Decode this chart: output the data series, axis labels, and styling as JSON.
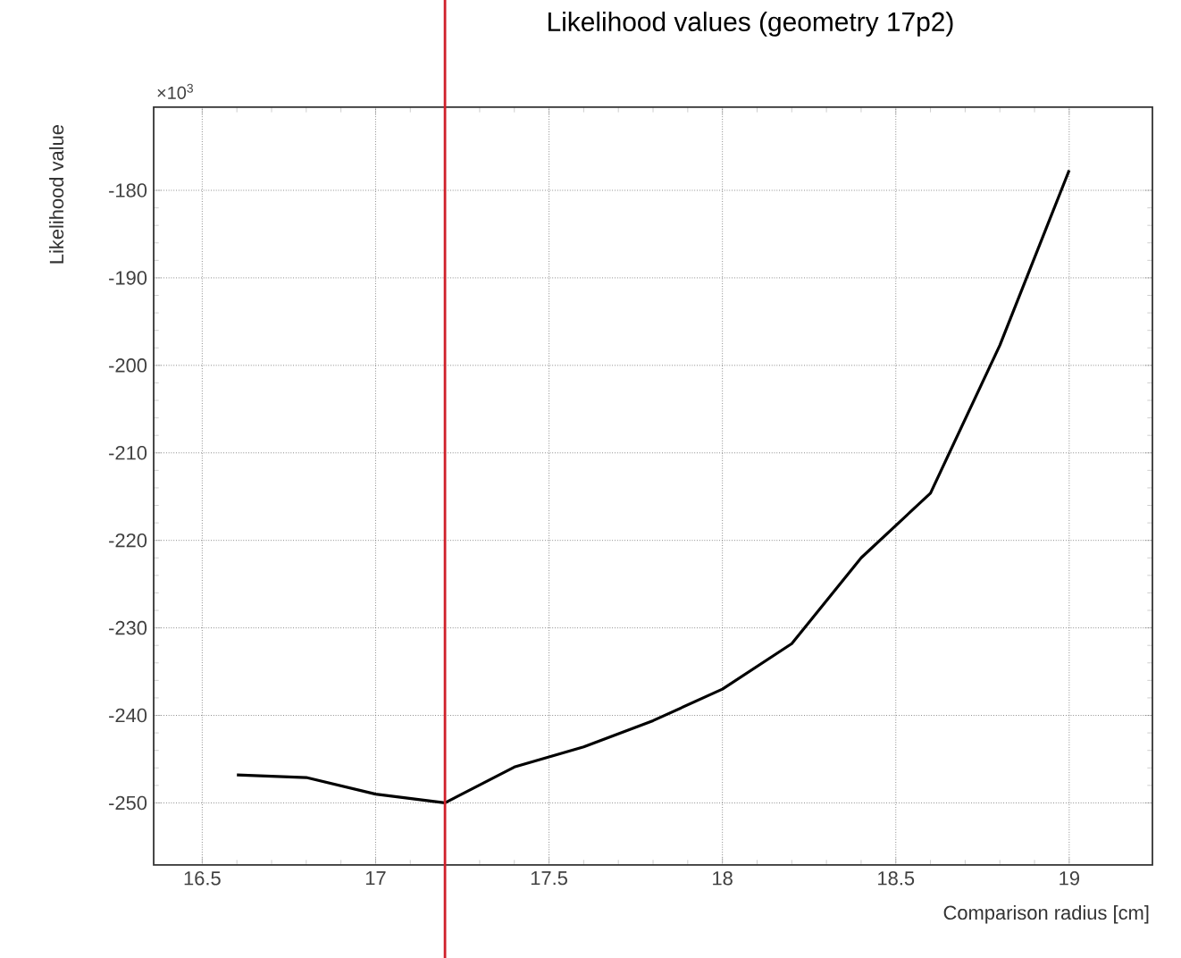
{
  "chart_data": {
    "type": "line",
    "title": "Likelihood values (geometry 17p2)",
    "xlabel": "Comparison radius [cm]",
    "ylabel": "Likelihood value",
    "annotations": [
      "×10$^{3}$"
    ],
    "x": [
      16.6,
      16.8,
      17.0,
      17.2,
      17.4,
      17.6,
      17.8,
      18.0,
      18.2,
      18.4,
      18.6,
      18.8,
      19.0
    ],
    "series": [
      {
        "color": "#000000",
        "values": [
          -246.8,
          -247.1,
          -249.0,
          -250.0,
          -245.9,
          -243.6,
          -240.6,
          -237.0,
          -231.8,
          -222.0,
          -214.6,
          -197.7,
          -177.7
        ]
      }
    ],
    "xlim": [
      16.36,
      19.24
    ],
    "ylim": [
      -257.1,
      -170.5
    ],
    "xticks": [
      16.5,
      17,
      17.5,
      18,
      18.5,
      19
    ],
    "yticks": [
      -250,
      -240,
      -230,
      -220,
      -210,
      -200,
      -190,
      -180
    ],
    "ref_lines": [
      {
        "axis": "x",
        "value": 17.2,
        "color": "#d0202a"
      }
    ],
    "grid": true,
    "marker": "none",
    "line_style": "solid"
  }
}
